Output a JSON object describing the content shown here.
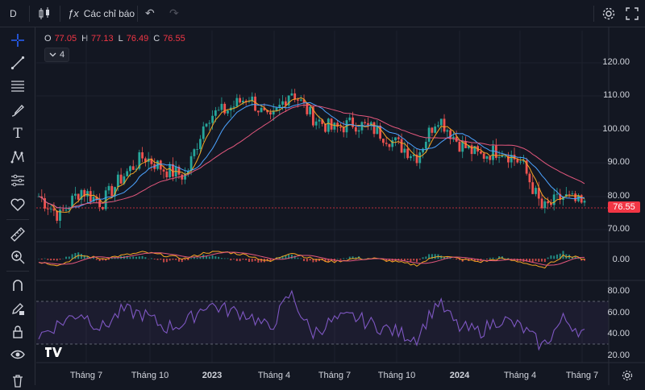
{
  "toolbar": {
    "symbol": "D",
    "indicators_label": "Các chỉ báo"
  },
  "ohlc": {
    "open_key": "O",
    "open": "77.05",
    "high_key": "H",
    "high": "77.13",
    "low_key": "L",
    "low": "76.49",
    "close_key": "C",
    "close": "76.55"
  },
  "indicator_count": "4",
  "price_axis": [
    "120.00",
    "110.00",
    "100.00",
    "90.00",
    "80.00",
    "70.00"
  ],
  "macd_axis": [
    "0.00"
  ],
  "rsi_axis": [
    "80.00",
    "60.00",
    "40.00",
    "20.00"
  ],
  "current_price": "76.55",
  "time_axis": [
    {
      "label": "Tháng 7",
      "bold": false
    },
    {
      "label": "Tháng 10",
      "bold": false
    },
    {
      "label": "2023",
      "bold": true
    },
    {
      "label": "Tháng 4",
      "bold": false
    },
    {
      "label": "Tháng 7",
      "bold": false
    },
    {
      "label": "Tháng 10",
      "bold": false
    },
    {
      "label": "2024",
      "bold": true
    },
    {
      "label": "Tháng 4",
      "bold": false
    },
    {
      "label": "Tháng 7",
      "bold": false
    }
  ],
  "colors": {
    "background": "#131722",
    "up": "#26a69a",
    "down": "#ef5350",
    "ma_fast": "#f5a623",
    "ma_mid": "#4ca3ff",
    "ma_slow": "#e3577d",
    "rsi": "#7e57c2",
    "price_badge": "#f23645"
  },
  "chart_data": [
    {
      "type": "line",
      "name": "price",
      "x": [
        "2022-05",
        "2022-06",
        "2022-07",
        "2022-08",
        "2022-09",
        "2022-10",
        "2022-11",
        "2022-12",
        "2023-01",
        "2023-02",
        "2023-03",
        "2023-04",
        "2023-05",
        "2023-06",
        "2023-07",
        "2023-08",
        "2023-09",
        "2023-10",
        "2023-11",
        "2023-12",
        "2024-01",
        "2024-02",
        "2024-03",
        "2024-04",
        "2024-05",
        "2024-06",
        "2024-07"
      ],
      "series": [
        {
          "values": [
            80,
            74,
            82,
            78,
            86,
            92,
            88,
            86,
            104,
            106,
            110,
            102,
            112,
            104,
            100,
            102,
            100,
            96,
            92,
            104,
            96,
            92,
            94,
            90,
            76,
            80,
            77
          ]
        }
      ],
      "ylim": [
        66,
        124
      ]
    },
    {
      "type": "line",
      "name": "macd",
      "x": [
        "2022-05",
        "2022-06",
        "2022-07",
        "2022-08",
        "2022-09",
        "2022-10",
        "2022-11",
        "2022-12",
        "2023-01",
        "2023-02",
        "2023-03",
        "2023-04",
        "2023-05",
        "2023-06",
        "2023-07",
        "2023-08",
        "2023-09",
        "2023-10",
        "2023-11",
        "2023-12",
        "2024-01",
        "2024-02",
        "2024-03",
        "2024-04",
        "2024-05",
        "2024-06",
        "2024-07"
      ],
      "series": [
        {
          "values": [
            -1,
            -2,
            1,
            0,
            1,
            2,
            1,
            0,
            2,
            2,
            1,
            -1,
            2,
            0,
            -1,
            0,
            0,
            -1,
            -2,
            1,
            0,
            -1,
            0,
            -1,
            -3,
            1,
            0
          ]
        }
      ]
    },
    {
      "type": "line",
      "name": "rsi",
      "x": [
        "2022-05",
        "2022-06",
        "2022-07",
        "2022-08",
        "2022-09",
        "2022-10",
        "2022-11",
        "2022-12",
        "2023-01",
        "2023-02",
        "2023-03",
        "2023-04",
        "2023-05",
        "2023-06",
        "2023-07",
        "2023-08",
        "2023-09",
        "2023-10",
        "2023-11",
        "2023-12",
        "2024-01",
        "2024-02",
        "2024-03",
        "2024-04",
        "2024-05",
        "2024-06",
        "2024-07"
      ],
      "series": [
        {
          "values": [
            38,
            50,
            60,
            45,
            62,
            58,
            46,
            50,
            68,
            62,
            58,
            44,
            78,
            40,
            52,
            56,
            48,
            42,
            36,
            70,
            46,
            42,
            54,
            46,
            28,
            54,
            40
          ]
        }
      ],
      "ylim": [
        15,
        85
      ]
    }
  ]
}
